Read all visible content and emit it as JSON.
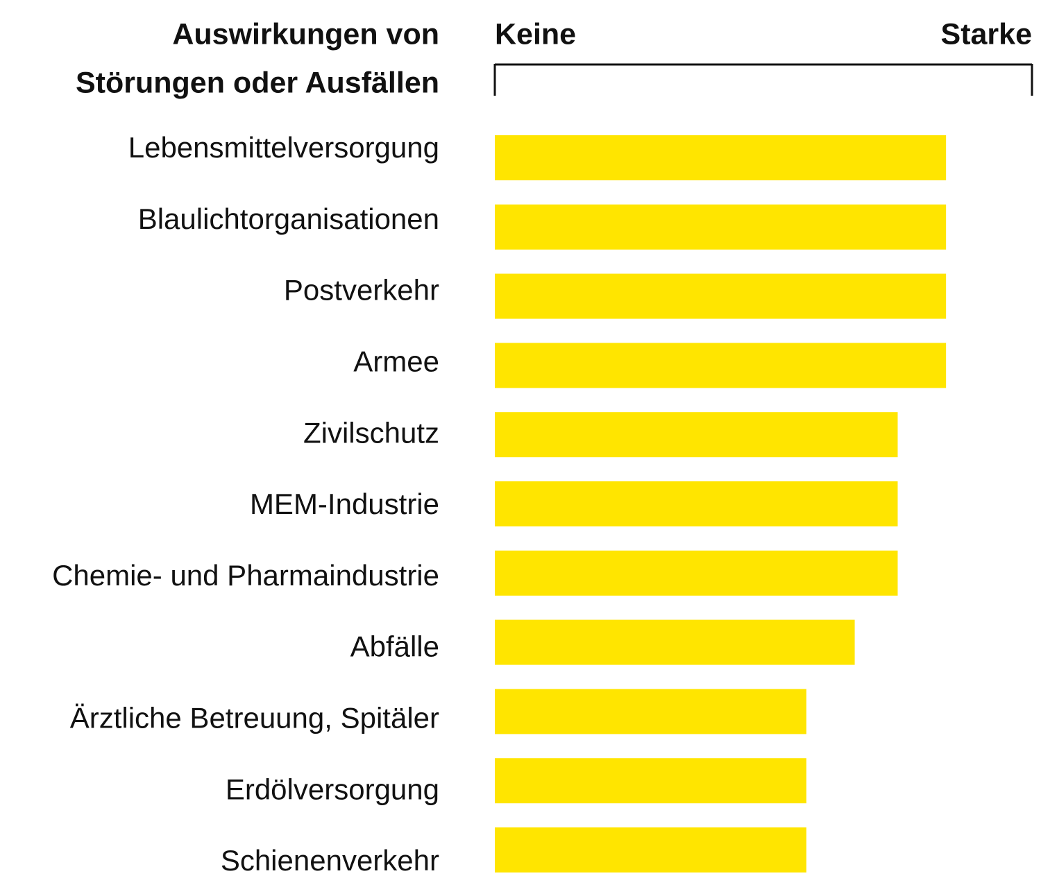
{
  "chart_data": {
    "type": "bar",
    "orientation": "horizontal",
    "title": [
      "Auswirkungen von",
      "Störungen oder Ausfällen"
    ],
    "categories": [
      "Lebensmittelversorgung",
      "Blaulichtorganisationen",
      "Postverkehr",
      "Armee",
      "Zivilschutz",
      "MEM-Industrie",
      "Chemie- und Pharmaindustrie",
      "Abfälle",
      "Ärztliche Betreuung, Spitäler",
      "Erdölversorgung",
      "Schienenverkehr"
    ],
    "values": [
      84,
      84,
      84,
      84,
      75,
      75,
      75,
      67,
      58,
      58,
      58
    ],
    "color": "#ffe500",
    "xlim": [
      0,
      100
    ],
    "xticks": [
      {
        "value": 0,
        "label": "Keine"
      },
      {
        "value": 100,
        "label": "Starke"
      }
    ]
  }
}
